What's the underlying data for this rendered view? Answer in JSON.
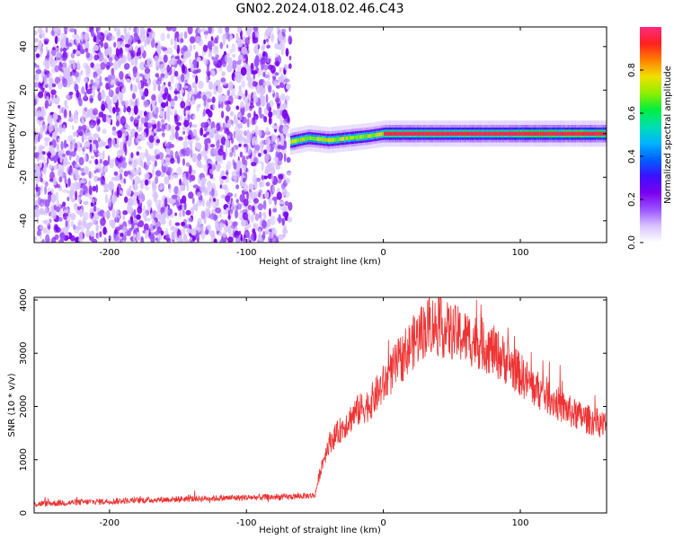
{
  "title": "GN02.2024.018.02.46.C43",
  "colors": {
    "snr_line": "#ee3333",
    "colormap": [
      "#ffffff",
      "#d8c4ff",
      "#9a52ff",
      "#7a00ee",
      "#3c10ff",
      "#0060ff",
      "#00b4ff",
      "#00e0b0",
      "#00ee40",
      "#90ee00",
      "#f0e000",
      "#ff8000",
      "#ff2020",
      "#ff2a80"
    ]
  },
  "chart_data": [
    {
      "type": "heatmap",
      "title": "",
      "xlabel": "Height of straight line (km)",
      "ylabel": "Frequency (Hz)",
      "xlim": [
        -255,
        163
      ],
      "ylim": [
        -50,
        49
      ],
      "xticks": [
        -200,
        -100,
        0,
        100
      ],
      "yticks": [
        -40,
        -20,
        0,
        20,
        40
      ],
      "colorbar": {
        "label": "Normalized spectral amplitude",
        "range": [
          0,
          1
        ],
        "ticks": [
          "0.0",
          "0.2",
          "0.4",
          "0.6",
          "0.8"
        ]
      },
      "regions": [
        {
          "x_range": [
            -255,
            -68
          ],
          "y_range": [
            -50,
            49
          ],
          "amplitude_range": [
            0.0,
            0.15
          ],
          "description_level": "noise"
        },
        {
          "x_range": [
            -68,
            163
          ],
          "y_range": [
            -6,
            6
          ],
          "amplitude_range": [
            0.2,
            1.0
          ],
          "description_level": "signal band"
        }
      ],
      "signal_ridge": [
        {
          "x": -70,
          "freq": -4
        },
        {
          "x": -55,
          "freq": -2
        },
        {
          "x": -40,
          "freq": -3
        },
        {
          "x": -25,
          "freq": -2
        },
        {
          "x": -10,
          "freq": -1
        },
        {
          "x": 0,
          "freq": 0
        },
        {
          "x": 50,
          "freq": 0
        },
        {
          "x": 100,
          "freq": 0
        },
        {
          "x": 163,
          "freq": 0
        }
      ]
    },
    {
      "type": "line",
      "title": "",
      "xlabel": "Height of straight line (km)",
      "ylabel": "SNR (10 * v/v)",
      "xlim": [
        -255,
        163
      ],
      "ylim": [
        0,
        4050
      ],
      "xticks": [
        -200,
        -100,
        0,
        100
      ],
      "yticks": [
        0,
        1000,
        2000,
        3000,
        4000
      ],
      "series": [
        {
          "x": [
            -255,
            -200,
            -150,
            -100,
            -70,
            -50,
            -45,
            -40,
            -35,
            -30,
            -20,
            -10,
            0,
            10,
            20,
            30,
            35,
            40,
            50,
            60,
            70,
            80,
            90,
            100,
            110,
            120,
            130,
            140,
            150,
            163
          ],
          "values": [
            170,
            220,
            260,
            290,
            300,
            330,
            900,
            1300,
            1450,
            1600,
            1900,
            2050,
            2400,
            2800,
            3150,
            3450,
            3550,
            3480,
            3400,
            3300,
            3200,
            3050,
            2850,
            2600,
            2350,
            2200,
            2000,
            1850,
            1750,
            1650
          ]
        }
      ]
    }
  ]
}
